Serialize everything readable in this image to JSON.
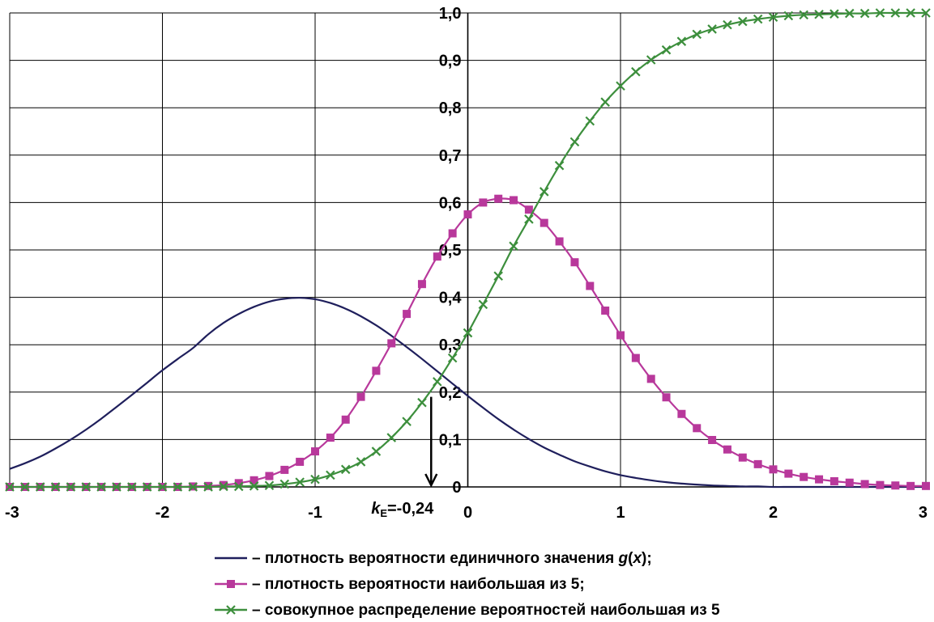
{
  "chart_data": {
    "type": "line",
    "xlim": [
      -3,
      3
    ],
    "ylim": [
      0,
      1
    ],
    "x_ticks": [
      "-3",
      "-2",
      "-1",
      "0",
      "1",
      "2",
      "3"
    ],
    "y_ticks": [
      "0",
      "0,1",
      "0,2",
      "0,3",
      "0,4",
      "0,5",
      "0,6",
      "0,7",
      "0,8",
      "0,9",
      "1,0"
    ],
    "grid": true,
    "legend_position": "bottom",
    "series": [
      {
        "name": "– плотность вероятности единичного значения g(x);",
        "color": "#1f1f5c",
        "marker": "none",
        "x": [
          -3.0,
          -2.9,
          -2.8,
          -2.7,
          -2.6,
          -2.5,
          -2.4,
          -2.3,
          -2.2,
          -2.1,
          -2.0,
          -1.9,
          -1.8,
          -1.7,
          -1.6,
          -1.5,
          -1.4,
          -1.3,
          -1.2,
          -1.1,
          -1.0,
          -0.9,
          -0.8,
          -0.7,
          -0.6,
          -0.5,
          -0.4,
          -0.3,
          -0.2,
          -0.1,
          0.0,
          0.1,
          0.2,
          0.3,
          0.4,
          0.5,
          0.6,
          0.7,
          0.8,
          0.9,
          1.0,
          1.1,
          1.2,
          1.3,
          1.4,
          1.5,
          1.6,
          1.7,
          1.8,
          1.9,
          2.0,
          2.1,
          2.2,
          2.3,
          2.4,
          2.5,
          2.6,
          2.7,
          2.8,
          2.9,
          3.0
        ],
        "y": [
          0.038,
          0.05,
          0.064,
          0.081,
          0.1,
          0.121,
          0.144,
          0.169,
          0.194,
          0.22,
          0.246,
          0.27,
          0.293,
          0.322,
          0.346,
          0.365,
          0.38,
          0.391,
          0.397,
          0.399,
          0.396,
          0.388,
          0.376,
          0.36,
          0.341,
          0.319,
          0.295,
          0.27,
          0.244,
          0.218,
          0.192,
          0.167,
          0.143,
          0.121,
          0.101,
          0.083,
          0.068,
          0.054,
          0.043,
          0.033,
          0.025,
          0.019,
          0.014,
          0.01,
          0.007,
          0.005,
          0.003,
          0.002,
          0.001,
          0.001,
          0.0,
          0.0,
          0.0,
          0.0,
          0.0,
          0.0,
          0.0,
          0.0,
          0.0,
          0.0,
          0.0
        ]
      },
      {
        "name": "– плотность вероятности наибольшая из 5;",
        "color": "#b8389b",
        "marker": "square",
        "x": [
          -3.0,
          -2.9,
          -2.8,
          -2.7,
          -2.6,
          -2.5,
          -2.4,
          -2.3,
          -2.2,
          -2.1,
          -2.0,
          -1.9,
          -1.8,
          -1.7,
          -1.6,
          -1.5,
          -1.4,
          -1.3,
          -1.2,
          -1.1,
          -1.0,
          -0.9,
          -0.8,
          -0.7,
          -0.6,
          -0.5,
          -0.4,
          -0.3,
          -0.2,
          -0.1,
          0.0,
          0.1,
          0.2,
          0.3,
          0.4,
          0.5,
          0.6,
          0.7,
          0.8,
          0.9,
          1.0,
          1.1,
          1.2,
          1.3,
          1.4,
          1.5,
          1.6,
          1.7,
          1.8,
          1.9,
          2.0,
          2.1,
          2.2,
          2.3,
          2.4,
          2.5,
          2.6,
          2.7,
          2.8,
          2.9,
          3.0
        ],
        "y": [
          0.0,
          0.0,
          0.0,
          0.0,
          0.0,
          0.0,
          0.0,
          0.0,
          0.0,
          0.0,
          0.0,
          0.0,
          0.001,
          0.002,
          0.004,
          0.008,
          0.014,
          0.023,
          0.036,
          0.053,
          0.075,
          0.104,
          0.142,
          0.19,
          0.245,
          0.303,
          0.365,
          0.428,
          0.486,
          0.535,
          0.575,
          0.6,
          0.608,
          0.605,
          0.585,
          0.557,
          0.518,
          0.474,
          0.424,
          0.372,
          0.32,
          0.272,
          0.228,
          0.189,
          0.154,
          0.124,
          0.099,
          0.079,
          0.062,
          0.048,
          0.037,
          0.028,
          0.021,
          0.016,
          0.012,
          0.009,
          0.006,
          0.004,
          0.003,
          0.002,
          0.002
        ]
      },
      {
        "name": "– совокупное распределение вероятностей наибольшая из 5",
        "color": "#3d8f3d",
        "marker": "x",
        "x": [
          -3.0,
          -2.9,
          -2.8,
          -2.7,
          -2.6,
          -2.5,
          -2.4,
          -2.3,
          -2.2,
          -2.1,
          -2.0,
          -1.9,
          -1.8,
          -1.7,
          -1.6,
          -1.5,
          -1.4,
          -1.3,
          -1.2,
          -1.1,
          -1.0,
          -0.9,
          -0.8,
          -0.7,
          -0.6,
          -0.5,
          -0.4,
          -0.3,
          -0.2,
          -0.1,
          0.0,
          0.1,
          0.2,
          0.3,
          0.4,
          0.5,
          0.6,
          0.7,
          0.8,
          0.9,
          1.0,
          1.1,
          1.2,
          1.3,
          1.4,
          1.5,
          1.6,
          1.7,
          1.8,
          1.9,
          2.0,
          2.1,
          2.2,
          2.3,
          2.4,
          2.5,
          2.6,
          2.7,
          2.8,
          2.9,
          3.0
        ],
        "y": [
          0.0,
          0.0,
          0.0,
          0.0,
          0.0,
          0.0,
          0.0,
          0.0,
          0.0,
          0.0,
          0.0,
          0.0,
          0.0,
          0.0,
          0.001,
          0.001,
          0.002,
          0.003,
          0.006,
          0.01,
          0.016,
          0.025,
          0.037,
          0.053,
          0.075,
          0.104,
          0.138,
          0.178,
          0.222,
          0.272,
          0.325,
          0.385,
          0.445,
          0.508,
          0.565,
          0.623,
          0.678,
          0.728,
          0.772,
          0.812,
          0.846,
          0.876,
          0.901,
          0.922,
          0.94,
          0.955,
          0.966,
          0.975,
          0.982,
          0.987,
          0.991,
          0.994,
          0.996,
          0.997,
          0.998,
          0.999,
          0.999,
          1.0,
          1.0,
          1.0,
          1.0
        ]
      }
    ],
    "annotations": [
      {
        "text_main": "k",
        "text_sub": "E",
        "text_value": "=-0,24",
        "x": -0.24,
        "arrow_from_y": 0.19,
        "arrow_to_y": 0.0
      }
    ]
  },
  "legend": {
    "items": [
      {
        "label_prefix": "– плотность вероятности единичного значения ",
        "label_italic": "g",
        "label_mid": "(",
        "label_italic2": "x",
        "label_suffix": ");"
      },
      {
        "label_prefix": "– плотность вероятности наибольшая из 5;"
      },
      {
        "label_prefix": "– совокупное распределение вероятностей наибольшая из 5"
      }
    ]
  }
}
